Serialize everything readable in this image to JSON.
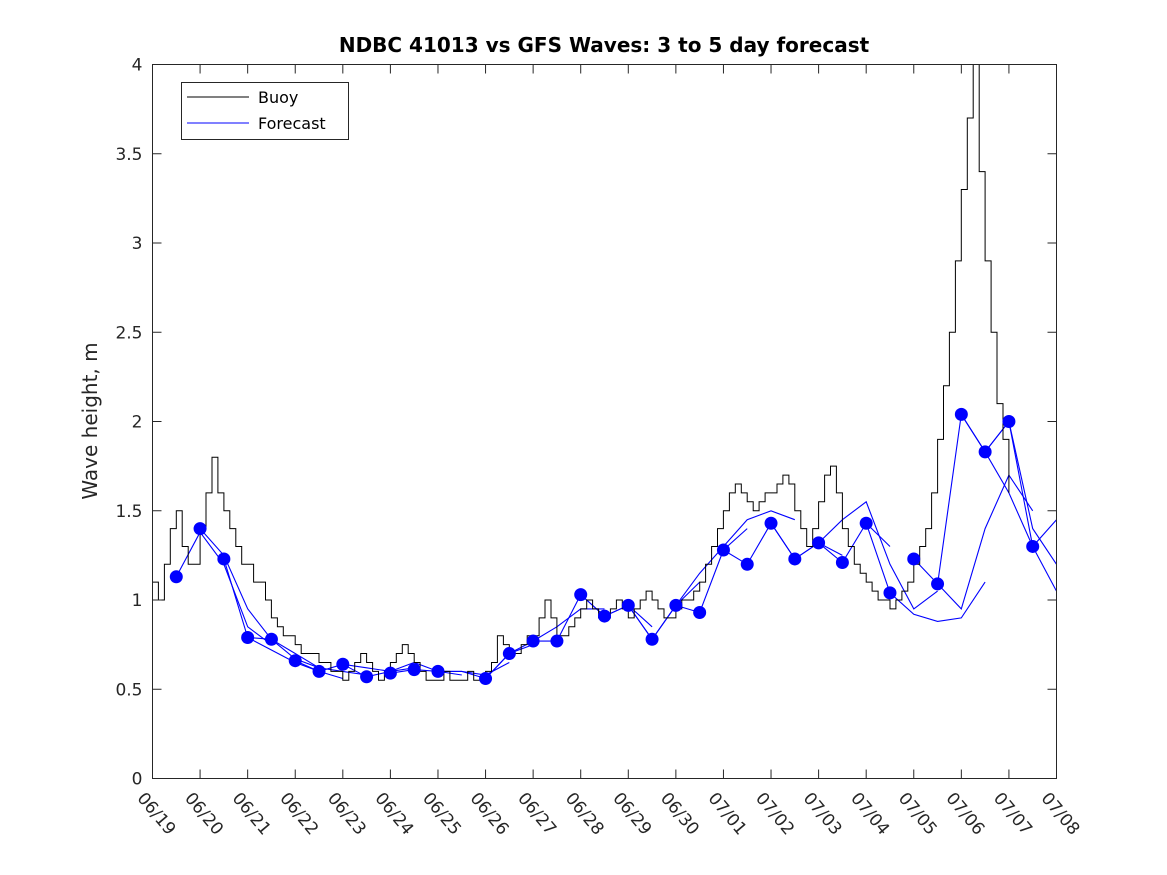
{
  "chart_data": {
    "type": "line",
    "title": "NDBC 41013 vs GFS Waves: 3 to 5 day forecast",
    "xlabel": "",
    "ylabel": "Wave height, m",
    "ylim": [
      0,
      4
    ],
    "yticks": [
      "0",
      "0.5",
      "1",
      "1.5",
      "2",
      "2.5",
      "3",
      "3.5",
      "4"
    ],
    "xlim": [
      "06/19",
      "07/08"
    ],
    "xticks": [
      "06/19",
      "06/20",
      "06/21",
      "06/22",
      "06/23",
      "06/24",
      "06/25",
      "06/26",
      "06/27",
      "06/28",
      "06/29",
      "06/30",
      "07/01",
      "07/02",
      "07/03",
      "07/04",
      "07/05",
      "07/06",
      "07/07",
      "07/08"
    ],
    "grid": false,
    "legend": {
      "position": "top-left",
      "entries": [
        "Buoy",
        "Forecast"
      ]
    },
    "colors": {
      "buoy": "#000000",
      "forecast": "#0000ff"
    },
    "buoy": {
      "name": "Buoy",
      "points": [
        [
          "06/19 00:00",
          1.1
        ],
        [
          "06/19 03:00",
          1.0
        ],
        [
          "06/19 06:00",
          1.2
        ],
        [
          "06/19 09:00",
          1.4
        ],
        [
          "06/19 12:00",
          1.5
        ],
        [
          "06/19 15:00",
          1.3
        ],
        [
          "06/19 18:00",
          1.2
        ],
        [
          "06/19 21:00",
          1.2
        ],
        [
          "06/20 00:00",
          1.4
        ],
        [
          "06/20 03:00",
          1.6
        ],
        [
          "06/20 06:00",
          1.8
        ],
        [
          "06/20 09:00",
          1.6
        ],
        [
          "06/20 12:00",
          1.5
        ],
        [
          "06/20 15:00",
          1.4
        ],
        [
          "06/20 18:00",
          1.3
        ],
        [
          "06/20 21:00",
          1.2
        ],
        [
          "06/21 00:00",
          1.2
        ],
        [
          "06/21 03:00",
          1.1
        ],
        [
          "06/21 06:00",
          1.1
        ],
        [
          "06/21 09:00",
          1.0
        ],
        [
          "06/21 12:00",
          0.9
        ],
        [
          "06/21 15:00",
          0.85
        ],
        [
          "06/21 18:00",
          0.8
        ],
        [
          "06/21 21:00",
          0.8
        ],
        [
          "06/22 00:00",
          0.75
        ],
        [
          "06/22 03:00",
          0.7
        ],
        [
          "06/22 06:00",
          0.7
        ],
        [
          "06/22 09:00",
          0.7
        ],
        [
          "06/22 12:00",
          0.65
        ],
        [
          "06/22 15:00",
          0.65
        ],
        [
          "06/22 18:00",
          0.6
        ],
        [
          "06/22 21:00",
          0.6
        ],
        [
          "06/23 00:00",
          0.55
        ],
        [
          "06/23 03:00",
          0.6
        ],
        [
          "06/23 06:00",
          0.65
        ],
        [
          "06/23 09:00",
          0.7
        ],
        [
          "06/23 12:00",
          0.65
        ],
        [
          "06/23 15:00",
          0.6
        ],
        [
          "06/23 18:00",
          0.55
        ],
        [
          "06/23 21:00",
          0.6
        ],
        [
          "06/24 00:00",
          0.65
        ],
        [
          "06/24 03:00",
          0.7
        ],
        [
          "06/24 06:00",
          0.75
        ],
        [
          "06/24 09:00",
          0.7
        ],
        [
          "06/24 12:00",
          0.65
        ],
        [
          "06/24 15:00",
          0.6
        ],
        [
          "06/24 18:00",
          0.55
        ],
        [
          "06/24 21:00",
          0.55
        ],
        [
          "06/25 00:00",
          0.55
        ],
        [
          "06/25 03:00",
          0.6
        ],
        [
          "06/25 06:00",
          0.55
        ],
        [
          "06/25 09:00",
          0.55
        ],
        [
          "06/25 12:00",
          0.55
        ],
        [
          "06/25 15:00",
          0.6
        ],
        [
          "06/25 18:00",
          0.55
        ],
        [
          "06/25 21:00",
          0.55
        ],
        [
          "06/26 00:00",
          0.6
        ],
        [
          "06/26 03:00",
          0.65
        ],
        [
          "06/26 06:00",
          0.8
        ],
        [
          "06/26 09:00",
          0.75
        ],
        [
          "06/26 12:00",
          0.7
        ],
        [
          "06/26 15:00",
          0.7
        ],
        [
          "06/26 18:00",
          0.75
        ],
        [
          "06/26 21:00",
          0.8
        ],
        [
          "06/27 00:00",
          0.8
        ],
        [
          "06/27 03:00",
          0.9
        ],
        [
          "06/27 06:00",
          1.0
        ],
        [
          "06/27 09:00",
          0.9
        ],
        [
          "06/27 12:00",
          0.8
        ],
        [
          "06/27 15:00",
          0.8
        ],
        [
          "06/27 18:00",
          0.85
        ],
        [
          "06/27 21:00",
          0.9
        ],
        [
          "06/28 00:00",
          0.95
        ],
        [
          "06/28 03:00",
          1.0
        ],
        [
          "06/28 06:00",
          0.95
        ],
        [
          "06/28 09:00",
          0.9
        ],
        [
          "06/28 12:00",
          0.9
        ],
        [
          "06/28 15:00",
          0.95
        ],
        [
          "06/28 18:00",
          1.0
        ],
        [
          "06/28 21:00",
          0.95
        ],
        [
          "06/29 00:00",
          0.9
        ],
        [
          "06/29 03:00",
          0.95
        ],
        [
          "06/29 06:00",
          1.0
        ],
        [
          "06/29 09:00",
          1.05
        ],
        [
          "06/29 12:00",
          1.0
        ],
        [
          "06/29 15:00",
          0.95
        ],
        [
          "06/29 18:00",
          0.9
        ],
        [
          "06/29 21:00",
          0.9
        ],
        [
          "06/30 00:00",
          0.95
        ],
        [
          "06/30 03:00",
          1.0
        ],
        [
          "06/30 06:00",
          1.0
        ],
        [
          "06/30 09:00",
          1.05
        ],
        [
          "06/30 12:00",
          1.1
        ],
        [
          "06/30 15:00",
          1.2
        ],
        [
          "06/30 18:00",
          1.3
        ],
        [
          "06/30 21:00",
          1.4
        ],
        [
          "07/01 00:00",
          1.5
        ],
        [
          "07/01 03:00",
          1.6
        ],
        [
          "07/01 06:00",
          1.65
        ],
        [
          "07/01 09:00",
          1.6
        ],
        [
          "07/01 12:00",
          1.55
        ],
        [
          "07/01 15:00",
          1.5
        ],
        [
          "07/01 18:00",
          1.55
        ],
        [
          "07/01 21:00",
          1.6
        ],
        [
          "07/02 00:00",
          1.6
        ],
        [
          "07/02 03:00",
          1.65
        ],
        [
          "07/02 06:00",
          1.7
        ],
        [
          "07/02 09:00",
          1.65
        ],
        [
          "07/02 12:00",
          1.5
        ],
        [
          "07/02 15:00",
          1.4
        ],
        [
          "07/02 18:00",
          1.3
        ],
        [
          "07/02 21:00",
          1.4
        ],
        [
          "07/03 00:00",
          1.55
        ],
        [
          "07/03 03:00",
          1.7
        ],
        [
          "07/03 06:00",
          1.75
        ],
        [
          "07/03 09:00",
          1.6
        ],
        [
          "07/03 12:00",
          1.4
        ],
        [
          "07/03 15:00",
          1.3
        ],
        [
          "07/03 18:00",
          1.2
        ],
        [
          "07/03 21:00",
          1.15
        ],
        [
          "07/04 00:00",
          1.1
        ],
        [
          "07/04 03:00",
          1.05
        ],
        [
          "07/04 06:00",
          1.0
        ],
        [
          "07/04 09:00",
          1.0
        ],
        [
          "07/04 12:00",
          0.95
        ],
        [
          "07/04 15:00",
          1.0
        ],
        [
          "07/04 18:00",
          1.05
        ],
        [
          "07/04 21:00",
          1.1
        ],
        [
          "07/05 00:00",
          1.2
        ],
        [
          "07/05 03:00",
          1.3
        ],
        [
          "07/05 06:00",
          1.4
        ],
        [
          "07/05 09:00",
          1.6
        ],
        [
          "07/05 12:00",
          1.9
        ],
        [
          "07/05 15:00",
          2.2
        ],
        [
          "07/05 18:00",
          2.5
        ],
        [
          "07/05 21:00",
          2.9
        ],
        [
          "07/06 00:00",
          3.3
        ],
        [
          "07/06 03:00",
          3.7
        ],
        [
          "07/06 06:00",
          4.0
        ],
        [
          "07/06 09:00",
          3.4
        ],
        [
          "07/06 12:00",
          2.9
        ],
        [
          "07/06 15:00",
          2.5
        ],
        [
          "07/06 18:00",
          2.1
        ],
        [
          "07/06 21:00",
          1.9
        ],
        [
          "07/07 00:00",
          1.6
        ]
      ]
    },
    "forecast_points": [
      [
        "06/19 12:00",
        1.13
      ],
      [
        "06/20 00:00",
        1.4
      ],
      [
        "06/20 12:00",
        1.23
      ],
      [
        "06/21 00:00",
        0.79
      ],
      [
        "06/21 12:00",
        0.78
      ],
      [
        "06/22 00:00",
        0.66
      ],
      [
        "06/22 12:00",
        0.6
      ],
      [
        "06/23 00:00",
        0.64
      ],
      [
        "06/23 12:00",
        0.57
      ],
      [
        "06/24 00:00",
        0.59
      ],
      [
        "06/24 12:00",
        0.61
      ],
      [
        "06/25 00:00",
        0.6
      ],
      [
        "06/26 00:00",
        0.56
      ],
      [
        "06/26 12:00",
        0.7
      ],
      [
        "06/27 00:00",
        0.77
      ],
      [
        "06/27 12:00",
        0.77
      ],
      [
        "06/28 00:00",
        1.03
      ],
      [
        "06/28 12:00",
        0.91
      ],
      [
        "06/29 00:00",
        0.97
      ],
      [
        "06/29 12:00",
        0.78
      ],
      [
        "06/30 00:00",
        0.97
      ],
      [
        "06/30 12:00",
        0.93
      ],
      [
        "07/01 00:00",
        1.28
      ],
      [
        "07/01 12:00",
        1.2
      ],
      [
        "07/02 00:00",
        1.43
      ],
      [
        "07/02 12:00",
        1.23
      ],
      [
        "07/03 00:00",
        1.32
      ],
      [
        "07/03 12:00",
        1.21
      ],
      [
        "07/04 00:00",
        1.43
      ],
      [
        "07/04 12:00",
        1.04
      ],
      [
        "07/05 00:00",
        1.23
      ],
      [
        "07/05 12:00",
        1.09
      ],
      [
        "07/06 00:00",
        2.04
      ],
      [
        "07/06 12:00",
        1.83
      ],
      [
        "07/07 00:00",
        2.0
      ],
      [
        "07/07 12:00",
        1.3
      ]
    ],
    "forecast_runs": [
      [
        [
          "06/19 12:00",
          1.13
        ],
        [
          "06/20 00:00",
          1.38
        ],
        [
          "06/20 12:00",
          1.2
        ],
        [
          "06/21 00:00",
          0.85
        ],
        [
          "06/21 12:00",
          0.75
        ]
      ],
      [
        [
          "06/20 00:00",
          1.4
        ],
        [
          "06/20 12:00",
          1.25
        ],
        [
          "06/21 00:00",
          0.95
        ],
        [
          "06/21 12:00",
          0.78
        ],
        [
          "06/22 00:00",
          0.7
        ],
        [
          "06/22 12:00",
          0.62
        ]
      ],
      [
        [
          "06/20 12:00",
          1.23
        ],
        [
          "06/21 00:00",
          0.79
        ],
        [
          "06/21 12:00",
          0.72
        ],
        [
          "06/22 00:00",
          0.65
        ],
        [
          "06/22 12:00",
          0.6
        ],
        [
          "06/23 00:00",
          0.56
        ]
      ],
      [
        [
          "06/21 00:00",
          0.79
        ],
        [
          "06/21 12:00",
          0.78
        ],
        [
          "06/22 00:00",
          0.67
        ],
        [
          "06/22 12:00",
          0.62
        ],
        [
          "06/23 00:00",
          0.6
        ],
        [
          "06/23 12:00",
          0.58
        ]
      ],
      [
        [
          "06/22 00:00",
          0.66
        ],
        [
          "06/22 12:00",
          0.6
        ],
        [
          "06/23 00:00",
          0.64
        ],
        [
          "06/23 12:00",
          0.62
        ],
        [
          "06/24 00:00",
          0.6
        ],
        [
          "06/24 12:00",
          0.62
        ]
      ],
      [
        [
          "06/23 00:00",
          0.64
        ],
        [
          "06/23 12:00",
          0.57
        ],
        [
          "06/24 00:00",
          0.6
        ],
        [
          "06/24 12:00",
          0.65
        ],
        [
          "06/25 00:00",
          0.6
        ],
        [
          "06/25 12:00",
          0.58
        ]
      ],
      [
        [
          "06/24 00:00",
          0.59
        ],
        [
          "06/24 12:00",
          0.61
        ],
        [
          "06/25 00:00",
          0.6
        ],
        [
          "06/25 12:00",
          0.6
        ],
        [
          "06/26 00:00",
          0.58
        ],
        [
          "06/26 12:00",
          0.65
        ]
      ],
      [
        [
          "06/25 00:00",
          0.6
        ],
        [
          "06/25 12:00",
          0.6
        ],
        [
          "06/26 00:00",
          0.56
        ],
        [
          "06/26 12:00",
          0.7
        ],
        [
          "06/27 00:00",
          0.75
        ]
      ],
      [
        [
          "06/26 00:00",
          0.56
        ],
        [
          "06/26 12:00",
          0.7
        ],
        [
          "06/27 00:00",
          0.77
        ],
        [
          "06/27 12:00",
          0.85
        ],
        [
          "06/28 00:00",
          0.95
        ],
        [
          "06/28 12:00",
          0.95
        ]
      ],
      [
        [
          "06/27 00:00",
          0.77
        ],
        [
          "06/27 12:00",
          0.77
        ],
        [
          "06/28 00:00",
          1.03
        ],
        [
          "06/28 12:00",
          0.91
        ],
        [
          "06/29 00:00",
          0.97
        ],
        [
          "06/29 12:00",
          0.85
        ]
      ],
      [
        [
          "06/28 00:00",
          1.03
        ],
        [
          "06/28 12:00",
          0.91
        ],
        [
          "06/29 00:00",
          0.97
        ],
        [
          "06/29 12:00",
          0.78
        ],
        [
          "06/30 00:00",
          0.97
        ],
        [
          "06/30 12:00",
          1.1
        ]
      ],
      [
        [
          "06/29 00:00",
          0.97
        ],
        [
          "06/29 12:00",
          0.78
        ],
        [
          "06/30 00:00",
          0.97
        ],
        [
          "06/30 12:00",
          0.93
        ],
        [
          "07/01 00:00",
          1.28
        ],
        [
          "07/01 12:00",
          1.4
        ]
      ],
      [
        [
          "06/30 00:00",
          0.97
        ],
        [
          "06/30 12:00",
          1.15
        ],
        [
          "07/01 00:00",
          1.3
        ],
        [
          "07/01 12:00",
          1.45
        ],
        [
          "07/02 00:00",
          1.5
        ],
        [
          "07/02 12:00",
          1.45
        ]
      ],
      [
        [
          "07/01 00:00",
          1.28
        ],
        [
          "07/01 12:00",
          1.2
        ],
        [
          "07/02 00:00",
          1.43
        ],
        [
          "07/02 12:00",
          1.23
        ],
        [
          "07/03 00:00",
          1.32
        ],
        [
          "07/03 12:00",
          1.25
        ]
      ],
      [
        [
          "07/02 00:00",
          1.43
        ],
        [
          "07/02 12:00",
          1.23
        ],
        [
          "07/03 00:00",
          1.32
        ],
        [
          "07/03 12:00",
          1.21
        ],
        [
          "07/04 00:00",
          1.43
        ],
        [
          "07/04 12:00",
          1.3
        ]
      ],
      [
        [
          "07/03 00:00",
          1.32
        ],
        [
          "07/03 12:00",
          1.45
        ],
        [
          "07/04 00:00",
          1.55
        ],
        [
          "07/04 12:00",
          1.2
        ],
        [
          "07/05 00:00",
          0.95
        ],
        [
          "07/05 12:00",
          1.05
        ]
      ],
      [
        [
          "07/04 00:00",
          1.43
        ],
        [
          "07/04 12:00",
          1.04
        ],
        [
          "07/05 00:00",
          0.92
        ],
        [
          "07/05 12:00",
          0.88
        ],
        [
          "07/06 00:00",
          0.9
        ],
        [
          "07/06 12:00",
          1.1
        ]
      ],
      [
        [
          "07/05 00:00",
          1.23
        ],
        [
          "07/05 12:00",
          1.09
        ],
        [
          "07/06 00:00",
          0.95
        ],
        [
          "07/06 12:00",
          1.4
        ],
        [
          "07/07 00:00",
          1.7
        ],
        [
          "07/07 12:00",
          1.5
        ]
      ],
      [
        [
          "07/05 12:00",
          1.09
        ],
        [
          "07/06 00:00",
          2.04
        ],
        [
          "07/06 12:00",
          1.83
        ],
        [
          "07/07 00:00",
          2.0
        ],
        [
          "07/07 12:00",
          1.4
        ],
        [
          "07/08 00:00",
          1.2
        ]
      ],
      [
        [
          "07/06 00:00",
          2.04
        ],
        [
          "07/06 12:00",
          1.83
        ],
        [
          "07/07 00:00",
          1.6
        ],
        [
          "07/07 12:00",
          1.3
        ],
        [
          "07/08 00:00",
          1.05
        ]
      ],
      [
        [
          "07/06 12:00",
          1.83
        ],
        [
          "07/07 00:00",
          2.0
        ],
        [
          "07/07 12:00",
          1.3
        ],
        [
          "07/08 00:00",
          1.45
        ]
      ]
    ]
  }
}
